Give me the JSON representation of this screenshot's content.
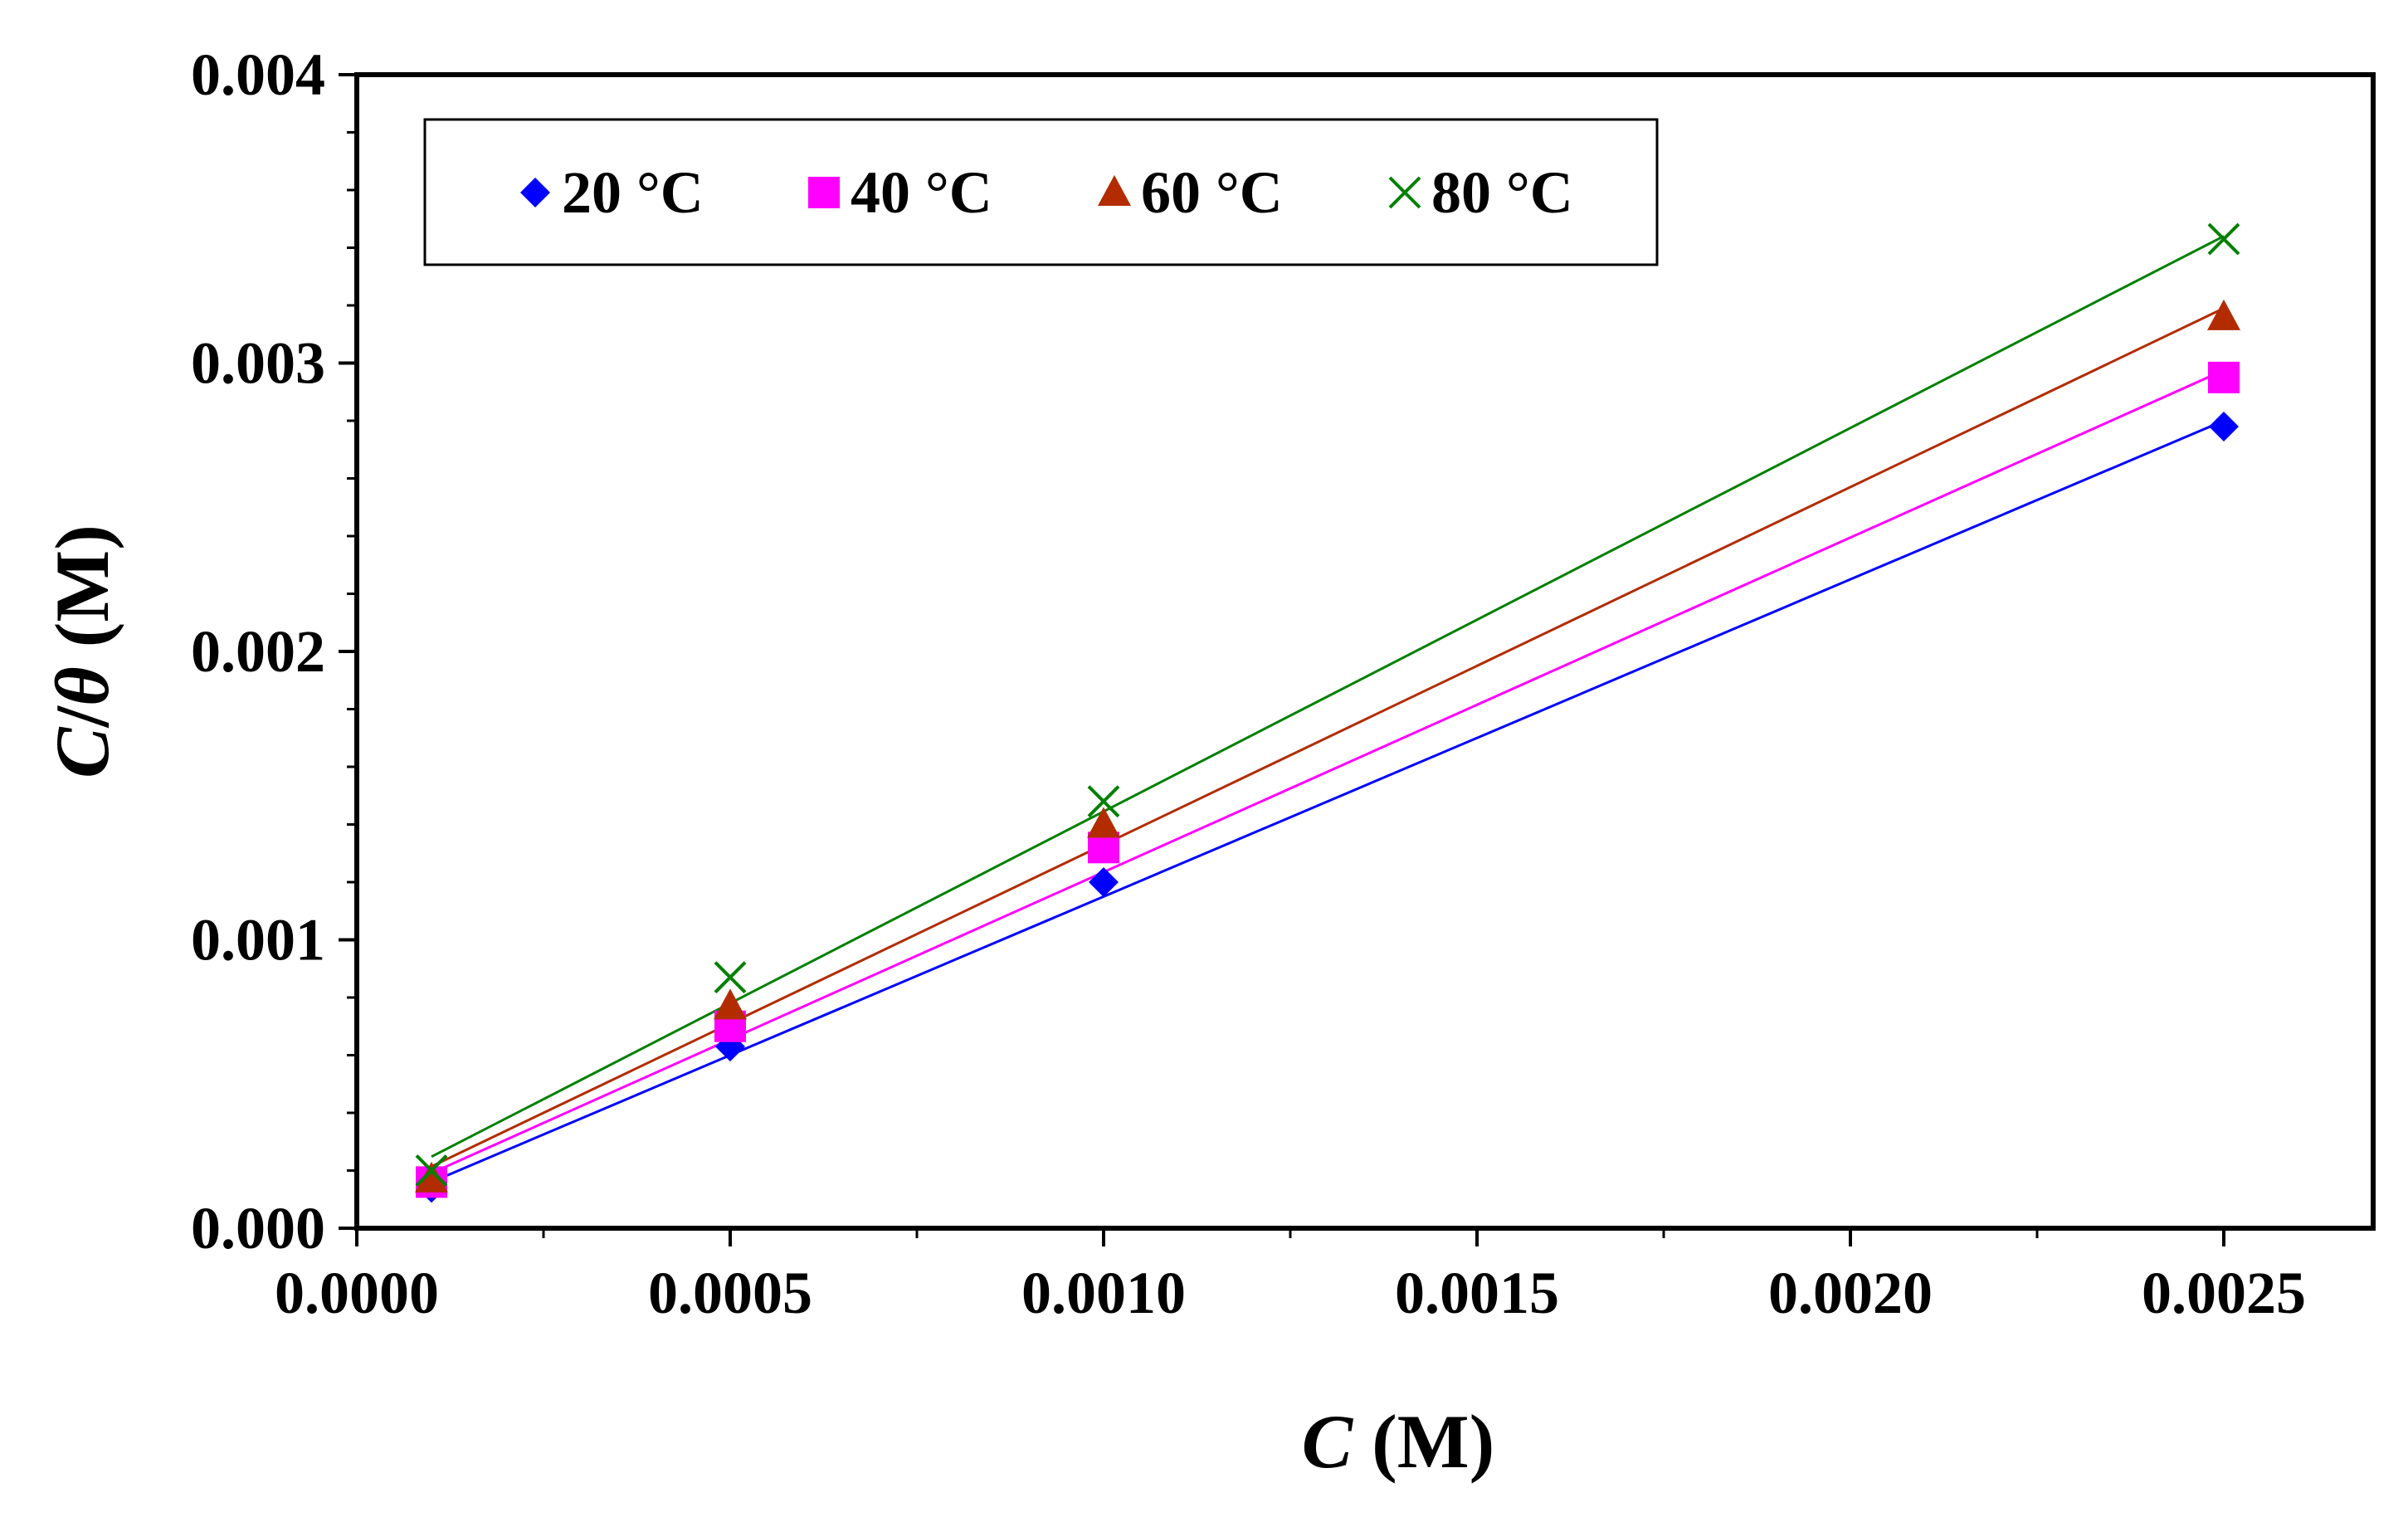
{
  "chart_data": {
    "type": "scatter",
    "title": "",
    "xlabel": "C (M)",
    "xlabel_parts": {
      "var": "C",
      "unit": " (M)"
    },
    "ylabel": "C/θ (M)",
    "ylabel_parts": {
      "var1": "C",
      "slash": "/",
      "var2": "θ",
      "unit": " (M)"
    },
    "xlim": [
      0.0,
      0.0027
    ],
    "ylim": [
      0.0,
      0.004
    ],
    "x_ticks": [
      "0.0000",
      "0.0005",
      "0.0010",
      "0.0015",
      "0.0020",
      "0.0025"
    ],
    "x_tick_values": [
      0.0,
      0.0005,
      0.001,
      0.0015,
      0.002,
      0.0025
    ],
    "y_ticks": [
      "0.000",
      "0.001",
      "0.002",
      "0.003",
      "0.004"
    ],
    "y_tick_values": [
      0.0,
      0.001,
      0.002,
      0.003,
      0.004
    ],
    "grid": false,
    "legend_position": "top-left",
    "x": [
      0.0001,
      0.0005,
      0.001,
      0.0025
    ],
    "series": [
      {
        "name": "20 °C",
        "marker": "diamond",
        "color": "#0000FF",
        "values": [
          0.00014,
          0.00063,
          0.0012,
          0.00278
        ],
        "fit": {
          "slope": 1.1,
          "intercept": 5e-05
        }
      },
      {
        "name": "40 °C",
        "marker": "square",
        "color": "#FF00FF",
        "values": [
          0.00016,
          0.0007,
          0.00132,
          0.00295
        ],
        "fit": {
          "slope": 1.16,
          "intercept": 7.5e-05
        }
      },
      {
        "name": "60 °C",
        "marker": "triangle",
        "color": "#B22C00",
        "values": [
          0.00017,
          0.00077,
          0.0014,
          0.00316
        ],
        "fit": {
          "slope": 1.24,
          "intercept": 9e-05
        }
      },
      {
        "name": "80 °C",
        "marker": "x",
        "color": "#008000",
        "values": [
          0.0002,
          0.00087,
          0.00148,
          0.00343
        ],
        "fit": {
          "slope": 1.33,
          "intercept": 0.000115
        }
      }
    ]
  }
}
